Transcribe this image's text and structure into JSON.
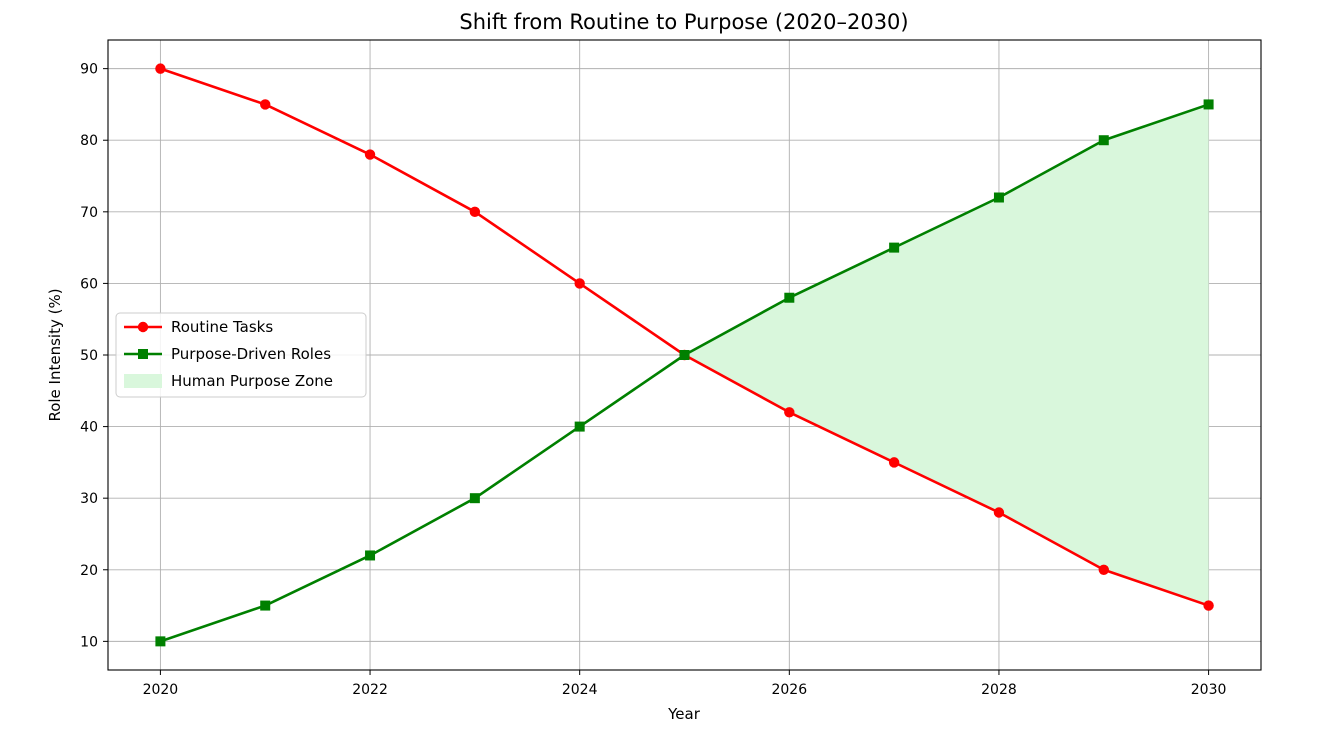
{
  "chart_data": {
    "type": "line",
    "title": "Shift from Routine to Purpose (2020–2030)",
    "xlabel": "Year",
    "ylabel": "Role Intensity (%)",
    "x": [
      2020,
      2021,
      2022,
      2023,
      2024,
      2025,
      2026,
      2027,
      2028,
      2029,
      2030
    ],
    "xlim": [
      2019.5,
      2030.5
    ],
    "ylim": [
      6,
      94
    ],
    "xticks": [
      2020,
      2022,
      2024,
      2026,
      2028,
      2030
    ],
    "yticks": [
      10,
      20,
      30,
      40,
      50,
      60,
      70,
      80,
      90
    ],
    "grid": true,
    "legend_position": "center-left",
    "series": [
      {
        "name": "Routine Tasks",
        "values": [
          90,
          85,
          78,
          70,
          60,
          50,
          42,
          35,
          28,
          20,
          15
        ],
        "color": "#ff0000",
        "marker": "circle"
      },
      {
        "name": "Purpose-Driven Roles",
        "values": [
          10,
          15,
          22,
          30,
          40,
          50,
          58,
          65,
          72,
          80,
          85
        ],
        "color": "#008000",
        "marker": "square"
      }
    ],
    "fill_region": {
      "name": "Human Purpose Zone",
      "between": [
        "Purpose-Driven Roles",
        "Routine Tasks"
      ],
      "from_x": 2025,
      "to_x": 2030,
      "color": "#d9f7dc"
    }
  }
}
